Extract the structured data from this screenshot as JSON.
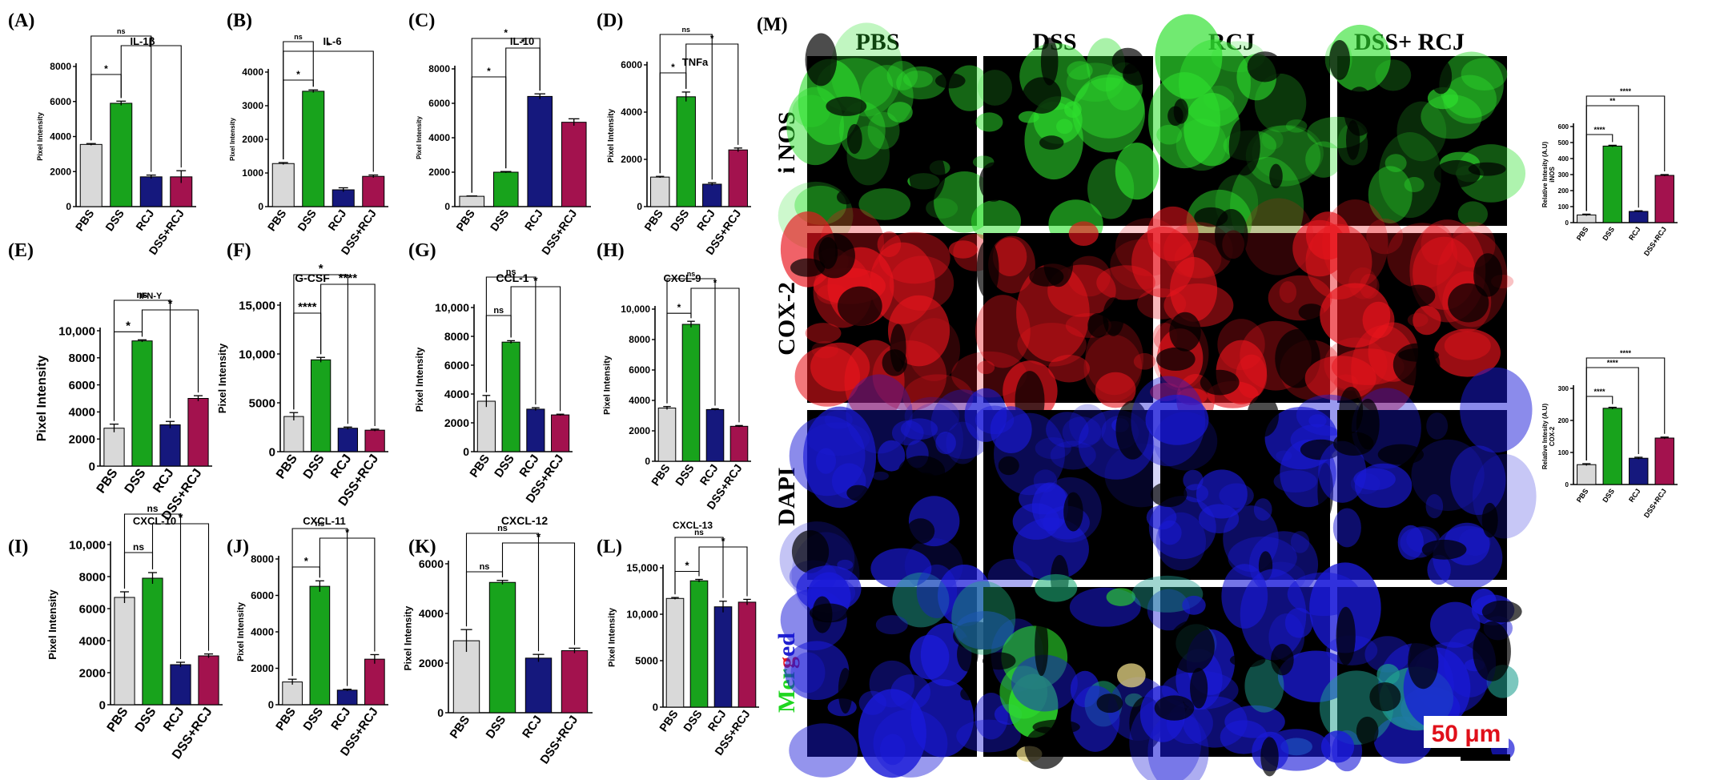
{
  "figure": {
    "micro": {
      "label": "(M)",
      "columns": [
        "PBS",
        "DSS",
        "RCJ",
        "DSS+ RCJ"
      ],
      "rows": [
        "i NOS",
        "COX-2",
        "DAPI",
        "Merged"
      ],
      "merged_letters": [
        "M",
        "e",
        "r",
        "g",
        "e",
        "d"
      ],
      "scale_bar": "50 μm"
    }
  },
  "chart_data": [
    {
      "id": "A",
      "label": "(A)",
      "title": "IL-1β",
      "type": "bar",
      "categories": [
        "PBS",
        "DSS",
        "RCJ",
        "DSS+RCJ"
      ],
      "values": [
        3550,
        5900,
        1700,
        1700
      ],
      "errors": [
        50,
        120,
        100,
        350
      ],
      "ylabel": "Pixel Intensity",
      "ylim": [
        0,
        8000
      ],
      "yticks": [
        "0",
        "2000",
        "4000",
        "6000",
        "8000"
      ],
      "brackets": [
        {
          "a": 0,
          "b": 1,
          "label": "*"
        },
        {
          "a": 1,
          "b": 3,
          "label": "*"
        },
        {
          "a": 0,
          "b": 2,
          "label": "ns"
        }
      ]
    },
    {
      "id": "B",
      "label": "(B)",
      "title": "IL-6",
      "type": "bar",
      "categories": [
        "PBS",
        "DSS",
        "RCJ",
        "DSS+RCJ"
      ],
      "values": [
        1280,
        3430,
        500,
        900
      ],
      "errors": [
        30,
        40,
        60,
        40
      ],
      "ylabel": "Pixel Intensity",
      "ylim": [
        0,
        4000
      ],
      "yticks": [
        "0",
        "1000",
        "2000",
        "3000",
        "4000"
      ],
      "brackets": [
        {
          "a": 0,
          "b": 1,
          "label": "*"
        },
        {
          "a": 0,
          "b": 3,
          "label": "*"
        },
        {
          "a": 0,
          "b": 1,
          "label": "ns"
        }
      ]
    },
    {
      "id": "C",
      "label": "(C)",
      "title": "IL-10",
      "type": "bar",
      "categories": [
        "PBS",
        "DSS",
        "RCJ",
        "DSS+RCJ"
      ],
      "values": [
        600,
        2000,
        6400,
        4900
      ],
      "errors": [
        20,
        40,
        150,
        200
      ],
      "ylabel": "Pixel Intensity",
      "ylim": [
        0,
        8000
      ],
      "yticks": [
        "0",
        "2000",
        "4000",
        "6000",
        "8000"
      ],
      "brackets": [
        {
          "a": 0,
          "b": 1,
          "label": "*"
        },
        {
          "a": 1,
          "b": 2,
          "label": "*"
        },
        {
          "a": 0,
          "b": 2,
          "label": "*"
        }
      ]
    },
    {
      "id": "D",
      "label": "(D)",
      "title": "TNFa",
      "type": "bar",
      "categories": [
        "PBS",
        "DSS",
        "RCJ",
        "DSS+RCJ"
      ],
      "values": [
        1250,
        4650,
        950,
        2400
      ],
      "errors": [
        30,
        200,
        60,
        80
      ],
      "ylabel": "Pixel Intensity",
      "ylim": [
        0,
        6000
      ],
      "yticks": [
        "0",
        "2000",
        "4000",
        "6000"
      ],
      "brackets": [
        {
          "a": 0,
          "b": 1,
          "label": "*"
        },
        {
          "a": 1,
          "b": 3,
          "label": "*"
        },
        {
          "a": 0,
          "b": 2,
          "label": "ns"
        }
      ]
    },
    {
      "id": "E",
      "label": "(E)",
      "title": "IFN-Y",
      "type": "bar",
      "categories": [
        "PBS",
        "DSS",
        "RCJ",
        "DSS+RCJ"
      ],
      "values": [
        2800,
        9250,
        3050,
        5000
      ],
      "errors": [
        300,
        80,
        250,
        200
      ],
      "ylabel": "Pixel Intensity",
      "ylim": [
        0,
        10000
      ],
      "yticks": [
        "0",
        "2000",
        "4000",
        "6000",
        "8000",
        "10,000"
      ],
      "brackets": [
        {
          "a": 0,
          "b": 1,
          "label": "*"
        },
        {
          "a": 1,
          "b": 3,
          "label": "*"
        },
        {
          "a": 0,
          "b": 2,
          "label": "ns"
        }
      ]
    },
    {
      "id": "F",
      "label": "(F)",
      "title": "G-CSF",
      "type": "bar",
      "categories": [
        "PBS",
        "DSS",
        "RCJ",
        "DSS+RCJ"
      ],
      "values": [
        3600,
        9400,
        2400,
        2200
      ],
      "errors": [
        400,
        250,
        120,
        100
      ],
      "ylabel": "Pixel Intensity",
      "ylim": [
        0,
        15000
      ],
      "yticks": [
        "0",
        "5000",
        "10,000",
        "15,000"
      ],
      "brackets": [
        {
          "a": 0,
          "b": 1,
          "label": "****"
        },
        {
          "a": 1,
          "b": 3,
          "label": "****"
        },
        {
          "a": 0,
          "b": 2,
          "label": "*"
        }
      ]
    },
    {
      "id": "G",
      "label": "(G)",
      "title": "CCL-1",
      "type": "bar",
      "categories": [
        "PBS",
        "DSS",
        "RCJ",
        "DSS+RCJ"
      ],
      "values": [
        3500,
        7600,
        2950,
        2550
      ],
      "errors": [
        400,
        100,
        100,
        50
      ],
      "ylabel": "Pixel Intensity",
      "ylim": [
        0,
        10000
      ],
      "yticks": [
        "0",
        "2000",
        "4000",
        "6000",
        "8000",
        "10,000"
      ],
      "brackets": [
        {
          "a": 0,
          "b": 1,
          "label": "ns"
        },
        {
          "a": 1,
          "b": 3,
          "label": "*"
        },
        {
          "a": 0,
          "b": 2,
          "label": "ns"
        }
      ]
    },
    {
      "id": "H",
      "label": "(H)",
      "title": "CXCL-9",
      "type": "bar",
      "categories": [
        "PBS",
        "DSS",
        "RCJ",
        "DSS+RCJ"
      ],
      "values": [
        3500,
        9000,
        3400,
        2300
      ],
      "errors": [
        100,
        200,
        50,
        50
      ],
      "ylabel": "Pixel Intensity",
      "ylim": [
        0,
        10000
      ],
      "yticks": [
        "0",
        "2000",
        "4000",
        "6000",
        "8000",
        "10,000"
      ],
      "brackets": [
        {
          "a": 0,
          "b": 1,
          "label": "*"
        },
        {
          "a": 1,
          "b": 3,
          "label": "*"
        },
        {
          "a": 0,
          "b": 2,
          "label": "ns"
        }
      ]
    },
    {
      "id": "I",
      "label": "(I)",
      "title": "CXCL-10",
      "type": "bar",
      "categories": [
        "PBS",
        "DSS",
        "RCJ",
        "DSS+RCJ"
      ],
      "values": [
        6700,
        7900,
        2500,
        3050
      ],
      "errors": [
        350,
        350,
        150,
        120
      ],
      "ylabel": "Pixel Intensity",
      "ylim": [
        0,
        10000
      ],
      "yticks": [
        "0",
        "2000",
        "4000",
        "6000",
        "8000",
        "10,000"
      ],
      "brackets": [
        {
          "a": 0,
          "b": 1,
          "label": "ns"
        },
        {
          "a": 1,
          "b": 3,
          "label": "*"
        },
        {
          "a": 0,
          "b": 2,
          "label": "ns"
        }
      ]
    },
    {
      "id": "J",
      "label": "(J)",
      "title": "CXCL-11",
      "type": "bar",
      "categories": [
        "PBS",
        "DSS",
        "RCJ",
        "DSS+RCJ"
      ],
      "values": [
        1250,
        6500,
        800,
        2500
      ],
      "errors": [
        150,
        300,
        50,
        250
      ],
      "ylabel": "Pixel Intensity",
      "ylim": [
        0,
        8000
      ],
      "yticks": [
        "0",
        "2000",
        "4000",
        "6000",
        "8000"
      ],
      "brackets": [
        {
          "a": 0,
          "b": 1,
          "label": "*"
        },
        {
          "a": 1,
          "b": 3,
          "label": "*"
        },
        {
          "a": 0,
          "b": 2,
          "label": "ns"
        }
      ]
    },
    {
      "id": "K",
      "label": "(K)",
      "title": "CXCL-12",
      "type": "bar",
      "categories": [
        "PBS",
        "DSS",
        "RCJ",
        "DSS+RCJ"
      ],
      "values": [
        2900,
        5250,
        2200,
        2500
      ],
      "errors": [
        450,
        80,
        150,
        100
      ],
      "ylabel": "Pixel Intensity",
      "ylim": [
        0,
        6000
      ],
      "yticks": [
        "0",
        "2000",
        "4000",
        "6000"
      ],
      "brackets": [
        {
          "a": 0,
          "b": 1,
          "label": "ns"
        },
        {
          "a": 1,
          "b": 3,
          "label": "*"
        },
        {
          "a": 0,
          "b": 2,
          "label": "ns"
        }
      ]
    },
    {
      "id": "L",
      "label": "(L)",
      "title": "CXCL-13",
      "type": "bar",
      "categories": [
        "PBS",
        "DSS",
        "RCJ",
        "DSS+RCJ"
      ],
      "values": [
        11700,
        13600,
        10800,
        11300
      ],
      "errors": [
        100,
        150,
        600,
        300
      ],
      "ylabel": "Pixel Intensity",
      "ylim": [
        0,
        15000
      ],
      "yticks": [
        "0",
        "5000",
        "10,000",
        "15,000"
      ],
      "brackets": [
        {
          "a": 0,
          "b": 1,
          "label": "*"
        },
        {
          "a": 1,
          "b": 3,
          "label": "*"
        },
        {
          "a": 0,
          "b": 2,
          "label": "ns"
        }
      ]
    },
    {
      "id": "M1",
      "label": "",
      "title": "",
      "type": "bar",
      "categories": [
        "PBS",
        "DSS",
        "RCJ",
        "DSS+RCJ"
      ],
      "values": [
        48,
        478,
        70,
        295
      ],
      "errors": [
        5,
        5,
        4,
        5
      ],
      "ylabel": "Relative Intesity (A.U) iNOS",
      "ylim": [
        0,
        600
      ],
      "yticks": [
        "0",
        "100",
        "200",
        "300",
        "400",
        "500",
        "600"
      ],
      "brackets": [
        {
          "a": 0,
          "b": 1,
          "label": "****"
        },
        {
          "a": 0,
          "b": 2,
          "label": "**"
        },
        {
          "a": 0,
          "b": 3,
          "label": "****"
        }
      ]
    },
    {
      "id": "M2",
      "label": "",
      "title": "",
      "type": "bar",
      "categories": [
        "PBS",
        "DSS",
        "RCJ",
        "DSS+RCJ"
      ],
      "values": [
        62,
        238,
        82,
        145
      ],
      "errors": [
        3,
        3,
        3,
        3
      ],
      "ylabel": "Relative Intesity (A.U) COX-2",
      "ylim": [
        0,
        300
      ],
      "yticks": [
        "0",
        "100",
        "200",
        "300"
      ],
      "brackets": [
        {
          "a": 0,
          "b": 1,
          "label": "****"
        },
        {
          "a": 0,
          "b": 2,
          "label": "****"
        },
        {
          "a": 0,
          "b": 3,
          "label": "****"
        }
      ]
    }
  ],
  "colors": {
    "PBS": "#d9d9d9",
    "DSS": "#18a31c",
    "RCJ": "#15187d",
    "DSS+RCJ": "#a3124e",
    "green": "#2ee02e",
    "red": "#e8141c",
    "blue": "#1a1ad8"
  }
}
